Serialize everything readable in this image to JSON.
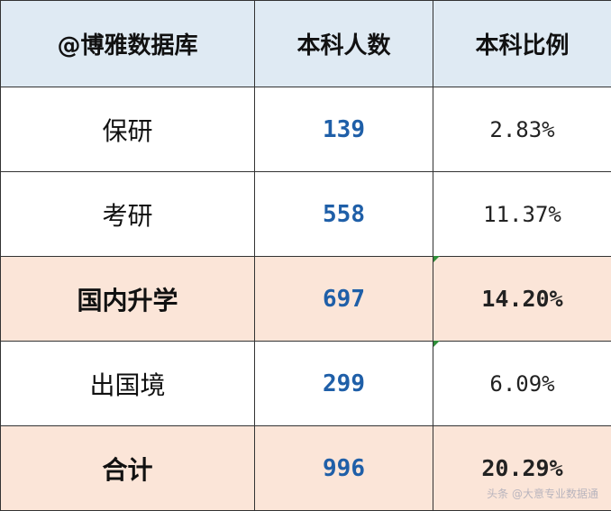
{
  "table": {
    "headers": [
      "@博雅数据库",
      "本科人数",
      "本科比例"
    ],
    "rows": [
      {
        "label": "保研",
        "count": "139",
        "pct": "2.83%"
      },
      {
        "label": "考研",
        "count": "558",
        "pct": "11.37%"
      },
      {
        "label": "国内升学",
        "count": "697",
        "pct": "14.20%"
      },
      {
        "label": "出国境",
        "count": "299",
        "pct": "6.09%"
      },
      {
        "label": "合计",
        "count": "996",
        "pct": "20.29%"
      }
    ]
  },
  "colors": {
    "header_bg": "#dfeaf3",
    "highlight_bg": "#fbe5d8",
    "count_text": "#1f5fa8"
  },
  "watermark": "头条 @大意专业数据通"
}
